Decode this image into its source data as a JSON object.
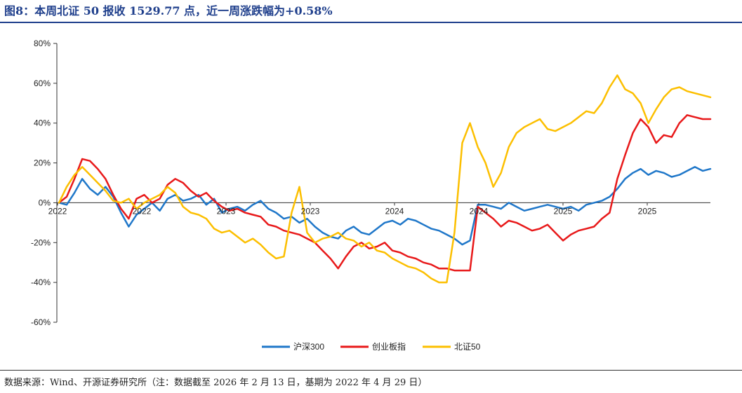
{
  "title": "图8：本周北证 50 报收 1529.77 点，近一周涨跌幅为+0.58%",
  "source": "数据来源：Wind、开源证券研究所（注：数据截至 2026 年 2 月 13 日，基期为 2022 年 4 月 29 日）",
  "chart_data": {
    "type": "line",
    "ylim": [
      -60,
      80
    ],
    "ytick_values": [
      -60,
      -40,
      -20,
      0,
      20,
      40,
      60,
      80
    ],
    "ytick_labels": [
      "-60%",
      "-40%",
      "-20%",
      "0%",
      "20%",
      "40%",
      "60%",
      "80%"
    ],
    "xtick_labels": [
      "2022",
      "2022",
      "2023",
      "2023",
      "2024",
      "2024",
      "2025",
      "2025"
    ],
    "legend_position": "bottom",
    "grid": false,
    "series": [
      {
        "name": "沪深300",
        "color": "#1f77c9",
        "values": [
          0,
          -1,
          5,
          12,
          7,
          4,
          8,
          3,
          -5,
          -12,
          -6,
          -3,
          0,
          -4,
          2,
          4,
          1,
          2,
          4,
          -1,
          2,
          -5,
          -3,
          -2,
          -4,
          -1,
          1,
          -3,
          -5,
          -8,
          -7,
          -10,
          -8,
          -12,
          -15,
          -17,
          -18,
          -14,
          -12,
          -15,
          -16,
          -13,
          -10,
          -9,
          -11,
          -8,
          -9,
          -11,
          -13,
          -14,
          -16,
          -18,
          -21,
          -19,
          -1,
          -1,
          -2,
          -3,
          0,
          -2,
          -4,
          -3,
          -2,
          -1,
          -2,
          -3,
          -2,
          -4,
          -1,
          0,
          1,
          3,
          7,
          12,
          15,
          17,
          14,
          16,
          15,
          13,
          14,
          16,
          18,
          16,
          17
        ]
      },
      {
        "name": "创业板指",
        "color": "#e8191a",
        "values": [
          0,
          3,
          12,
          22,
          21,
          17,
          12,
          4,
          -3,
          -8,
          2,
          4,
          0,
          2,
          9,
          12,
          10,
          6,
          3,
          5,
          1,
          -2,
          -4,
          -3,
          -5,
          -6,
          -7,
          -11,
          -12,
          -14,
          -15,
          -16,
          -18,
          -20,
          -24,
          -28,
          -33,
          -27,
          -22,
          -20,
          -23,
          -22,
          -20,
          -24,
          -25,
          -27,
          -28,
          -30,
          -31,
          -33,
          -33,
          -34,
          -34,
          -34,
          -2,
          -5,
          -8,
          -12,
          -9,
          -10,
          -12,
          -14,
          -13,
          -11,
          -15,
          -19,
          -16,
          -14,
          -13,
          -12,
          -8,
          -5,
          12,
          24,
          35,
          42,
          38,
          30,
          34,
          33,
          40,
          44,
          43,
          42,
          42
        ]
      },
      {
        "name": "北证50",
        "color": "#fcbf00",
        "values": [
          0,
          8,
          14,
          18,
          14,
          10,
          6,
          1,
          0,
          2,
          -3,
          0,
          2,
          4,
          8,
          5,
          -2,
          -5,
          -6,
          -8,
          -13,
          -15,
          -14,
          -17,
          -20,
          -18,
          -21,
          -25,
          -28,
          -27,
          -5,
          8,
          -15,
          -20,
          -18,
          -17,
          -15,
          -18,
          -19,
          -22,
          -20,
          -24,
          -25,
          -28,
          -30,
          -32,
          -33,
          -35,
          -38,
          -40,
          -40,
          -15,
          30,
          40,
          28,
          20,
          8,
          15,
          28,
          35,
          38,
          40,
          42,
          37,
          36,
          38,
          40,
          43,
          46,
          45,
          50,
          58,
          64,
          57,
          55,
          50,
          40,
          47,
          53,
          57,
          58,
          56,
          55,
          54,
          53
        ]
      }
    ]
  }
}
